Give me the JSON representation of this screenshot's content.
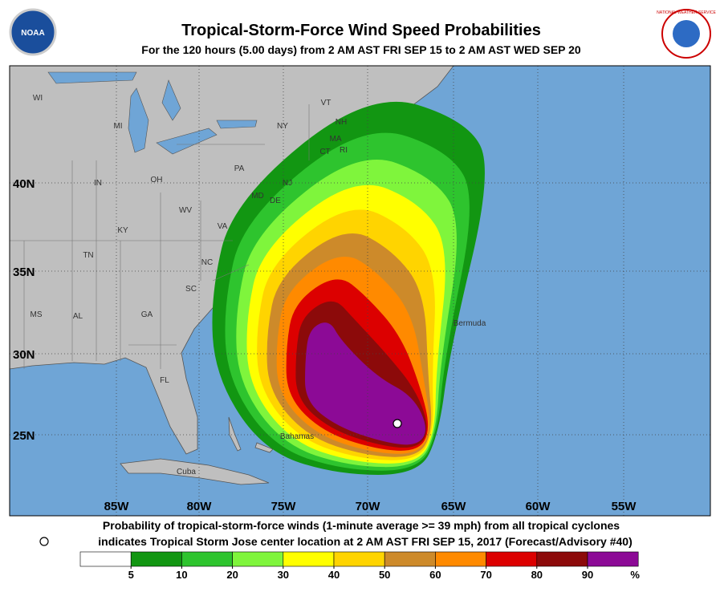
{
  "header": {
    "title": "Tropical-Storm-Force Wind Speed Probabilities",
    "subtitle": "For the 120 hours (5.00 days) from 2 AM AST FRI SEP 15 to 2 AM AST WED SEP 20",
    "logo_left": "NOAA",
    "logo_right": "NATIONAL WEATHER SERVICE"
  },
  "map": {
    "lat_labels": [
      "40N",
      "35N",
      "30N",
      "25N"
    ],
    "lon_labels": [
      "85W",
      "80W",
      "75W",
      "70W",
      "65W",
      "60W",
      "55W"
    ],
    "place_labels": [
      "WI",
      "MI",
      "NY",
      "VT",
      "NH",
      "MA",
      "CT",
      "RI",
      "PA",
      "OH",
      "IN",
      "WV",
      "VA",
      "KY",
      "MD",
      "DE",
      "NJ",
      "NC",
      "TN",
      "SC",
      "GA",
      "AL",
      "MS",
      "FL",
      "Bermuda",
      "Bahamas",
      "Cuba"
    ]
  },
  "footer": {
    "line1": "Probability of tropical-storm-force winds (1-minute average >= 39 mph) from all tropical cyclones",
    "line2": "indicates Tropical Storm Jose center location at 2 AM AST FRI SEP 15, 2017 (Forecast/Advisory #40)"
  },
  "legend": {
    "ticks": [
      5,
      10,
      20,
      30,
      40,
      50,
      60,
      70,
      80,
      90
    ],
    "unit": "%",
    "colors": [
      "#ffffff",
      "#129612",
      "#2ec42e",
      "#7ff53c",
      "#ffff00",
      "#ffd400",
      "#cd8a2a",
      "#ff8a00",
      "#dc0000",
      "#8c0a0a",
      "#8c0a96"
    ]
  }
}
